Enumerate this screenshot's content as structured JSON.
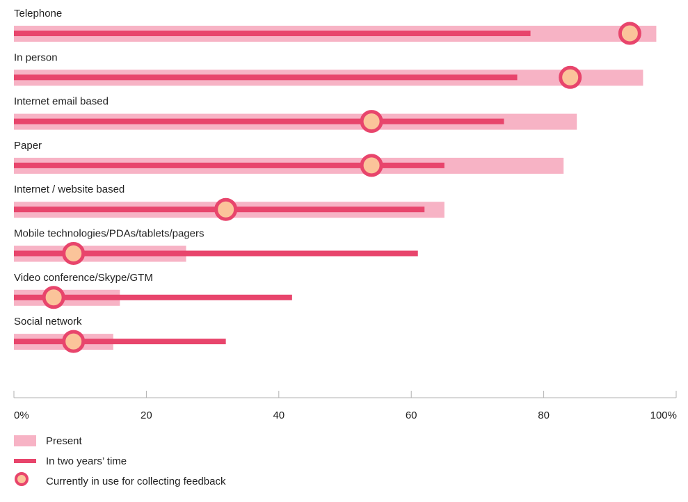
{
  "colors": {
    "present": "#f7b3c5",
    "future": "#e8456c",
    "circle_fill": "#fbc49a",
    "circle_stroke": "#e8456c",
    "axis": "#b0b0b0",
    "text": "#222222"
  },
  "chart_data": {
    "type": "bar",
    "orientation": "horizontal",
    "categories": [
      "Telephone",
      "In person",
      "Internet email based",
      "Paper",
      "Internet / website based",
      "Mobile technologies/PDAs/tablets/pagers",
      "Video conference/Skype/GTM",
      "Social network"
    ],
    "series": [
      {
        "name": "Present",
        "style": "wide-bar",
        "values": [
          97,
          95,
          85,
          83,
          65,
          26,
          16,
          15
        ]
      },
      {
        "name": "In two years’ time",
        "style": "thin-bar",
        "values": [
          78,
          76,
          74,
          65,
          62,
          61,
          42,
          32
        ]
      },
      {
        "name": "Currently in use for collecting feedback",
        "style": "circle-marker",
        "values": [
          93,
          84,
          54,
          54,
          32,
          9,
          6,
          9
        ]
      }
    ],
    "xlim": [
      0,
      100
    ],
    "xticks": [
      0,
      20,
      40,
      60,
      80,
      100
    ],
    "xtick_labels": [
      "0%",
      "20",
      "40",
      "60",
      "80",
      "100%"
    ],
    "grid": false,
    "legend_position": "bottom-left"
  },
  "legend": {
    "items": [
      {
        "label": "Present",
        "kind": "present"
      },
      {
        "label": "In two years’ time",
        "kind": "future"
      },
      {
        "label": "Currently in use for collecting feedback",
        "kind": "circle"
      }
    ]
  }
}
